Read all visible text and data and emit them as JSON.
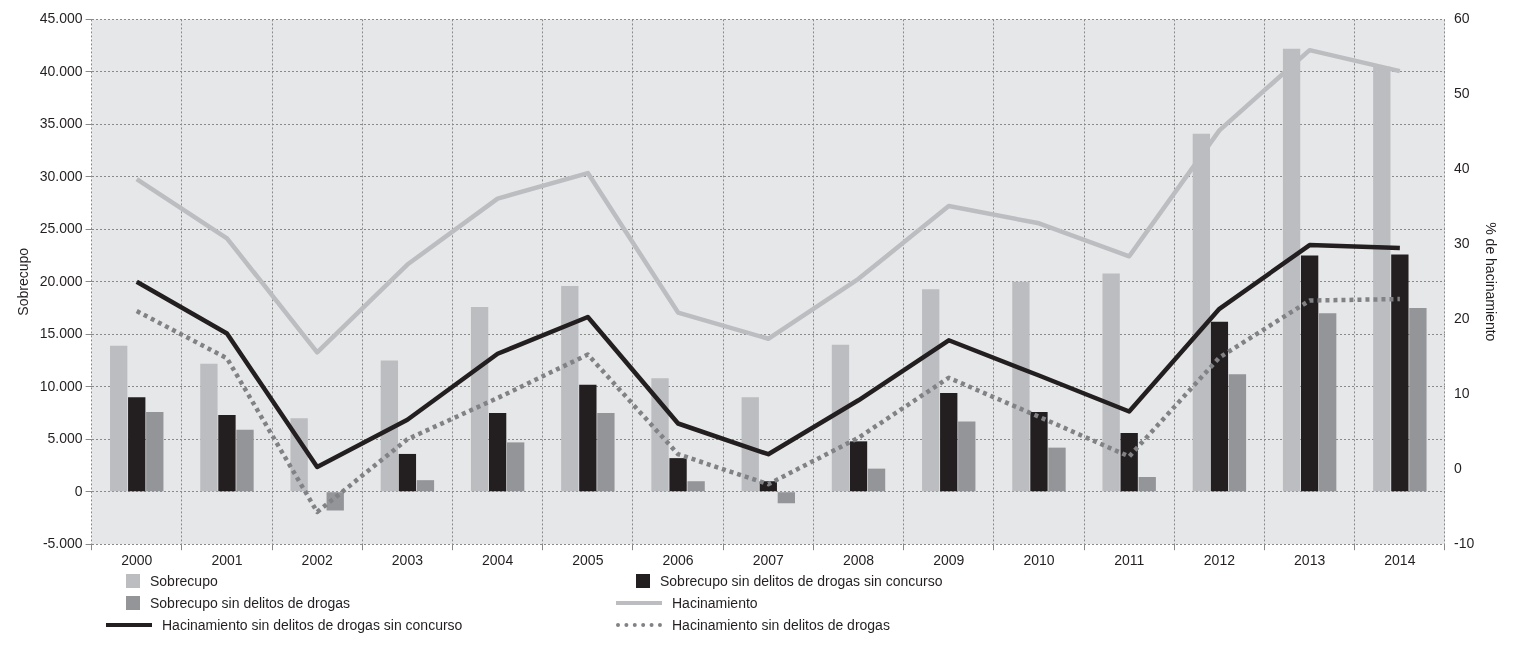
{
  "chart_data": {
    "type": "bar",
    "ylabel": "Sobrecupo",
    "y2label": "% de hacinamiento",
    "categories": [
      "2000",
      "2001",
      "2002",
      "2003",
      "2004",
      "2005",
      "2006",
      "2007",
      "2008",
      "2009",
      "2010",
      "2011",
      "2012",
      "2013",
      "2014"
    ],
    "series": [
      {
        "name": "Sobrecupo",
        "color": "#bcbdc0",
        "values": [
          13900,
          12200,
          7000,
          12500,
          17600,
          19600,
          10800,
          9000,
          14000,
          19300,
          20000,
          20800,
          34100,
          42200,
          40500
        ]
      },
      {
        "name": "Sobrecupo sin delitos de drogas sin concurso",
        "color": "#231f20",
        "values": [
          9000,
          7300,
          null,
          3600,
          7500,
          10200,
          3200,
          1000,
          4800,
          9400,
          7600,
          5600,
          16200,
          22500,
          22600
        ]
      },
      {
        "name": "Sobrecupo sin delitos de drogas",
        "color": "#939598",
        "values": [
          7600,
          5900,
          -1800,
          1100,
          4700,
          7500,
          1000,
          -1100,
          2200,
          6700,
          4200,
          1400,
          11200,
          17000,
          17500
        ]
      },
      {
        "name": "Hacinamiento",
        "type": "line",
        "axis": "y2",
        "color": "#bcbdc0",
        "line_style": "solid",
        "values": [
          38.7,
          30.8,
          15.6,
          27.3,
          36.1,
          39.5,
          20.9,
          17.4,
          25.4,
          35.1,
          32.8,
          28.4,
          45.2,
          55.9,
          53.1
        ]
      },
      {
        "name": "Hacinamiento sin delitos de drogas sin concurso",
        "type": "line",
        "axis": "y2",
        "color": "#231f20",
        "line_style": "solid",
        "values": [
          25.0,
          18.1,
          0.3,
          6.6,
          15.4,
          20.3,
          6.1,
          2.0,
          9.2,
          17.2,
          12.5,
          7.7,
          21.4,
          29.9,
          29.5
        ]
      },
      {
        "name": "Hacinamiento sin delitos de drogas",
        "type": "line",
        "axis": "y2",
        "color": "#808285",
        "line_style": "dotted",
        "values": [
          21.1,
          14.8,
          -5.7,
          4.0,
          9.5,
          15.3,
          2.0,
          -2.0,
          4.2,
          12.2,
          7.0,
          1.7,
          14.9,
          22.5,
          22.7
        ]
      }
    ],
    "ylim": [
      -5000,
      45000
    ],
    "yticks": [
      {
        "value": -5000,
        "label": "-5.000"
      },
      {
        "value": 0,
        "label": "0"
      },
      {
        "value": 5000,
        "label": "5.000"
      },
      {
        "value": 10000,
        "label": "10.000"
      },
      {
        "value": 15000,
        "label": "15.000"
      },
      {
        "value": 20000,
        "label": "20.000"
      },
      {
        "value": 25000,
        "label": "25.000"
      },
      {
        "value": 30000,
        "label": "30.000"
      },
      {
        "value": 35000,
        "label": "35.000"
      },
      {
        "value": 40000,
        "label": "40.000"
      },
      {
        "value": 45000,
        "label": "45.000"
      }
    ],
    "y2lim": [
      -10,
      60
    ],
    "y2ticks": [
      -10,
      0,
      10,
      20,
      30,
      40,
      50,
      60
    ],
    "grid": true,
    "legend": "bottom",
    "marker": "none"
  }
}
